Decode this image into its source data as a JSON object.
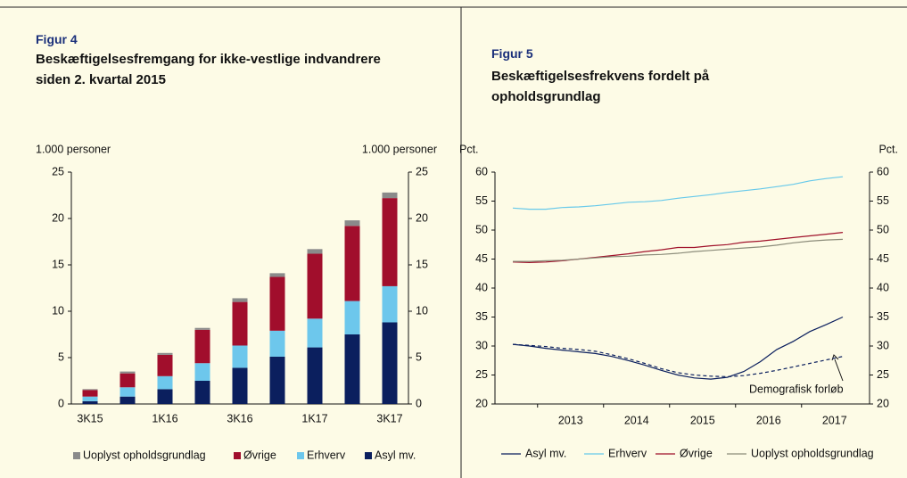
{
  "chart_data": [
    {
      "type": "bar",
      "stacked": true,
      "figure_label": "Figur 4",
      "title": "Beskæftigelsesfremgang for ikke-vestlige indvandrere siden 2. kvartal 2015",
      "ylabel": "1.000 personer",
      "y2label": "1.000 personer",
      "categories": [
        "3K15",
        null,
        "1K16",
        null,
        "3K16",
        null,
        "1K17",
        null,
        "3K17"
      ],
      "series": [
        {
          "name": "Asyl mv.",
          "color": "#0b1f5e",
          "values": [
            0.3,
            0.8,
            1.6,
            2.5,
            3.9,
            5.1,
            6.1,
            7.5,
            8.8
          ]
        },
        {
          "name": "Erhverv",
          "color": "#6dc7ec",
          "values": [
            0.5,
            1.0,
            1.4,
            1.9,
            2.4,
            2.8,
            3.1,
            3.6,
            3.9
          ]
        },
        {
          "name": "Øvrige",
          "color": "#a10e2c",
          "values": [
            0.7,
            1.5,
            2.3,
            3.6,
            4.7,
            5.8,
            7.0,
            8.1,
            9.5
          ]
        },
        {
          "name": "Uoplyst opholdsgrundlag",
          "color": "#8a8a8a",
          "values": [
            0.1,
            0.2,
            0.2,
            0.2,
            0.4,
            0.4,
            0.5,
            0.6,
            0.6
          ]
        }
      ],
      "ylim": [
        0,
        25
      ],
      "yticks": [
        0,
        5,
        10,
        15,
        20,
        25
      ],
      "y2lim": [
        0,
        25
      ],
      "y2ticks": [
        0,
        5,
        10,
        15,
        20,
        25
      ],
      "grid": false
    },
    {
      "type": "line",
      "figure_label": "Figur 5",
      "title": "Beskæftigelsesfrekvens fordelt på opholdsgrundlag",
      "ylabel": "Pct.",
      "y2label": "Pct.",
      "categories": [
        null,
        null,
        null,
        "2013",
        null,
        null,
        null,
        "2014",
        null,
        null,
        null,
        "2015",
        null,
        null,
        null,
        "2016",
        null,
        null,
        null,
        "2017",
        null
      ],
      "series": [
        {
          "name": "Asyl mv.",
          "color": "#0b1f5e",
          "values": [
            30.3,
            30.0,
            29.6,
            29.3,
            29.0,
            28.7,
            28.2,
            27.5,
            26.7,
            25.8,
            25.0,
            24.5,
            24.3,
            24.6,
            25.6,
            27.3,
            29.4,
            30.8,
            32.5,
            33.7,
            35.0
          ]
        },
        {
          "name": "Erhverv",
          "color": "#67c9ea",
          "values": [
            53.8,
            53.6,
            53.6,
            53.9,
            54.0,
            54.2,
            54.5,
            54.8,
            54.9,
            55.1,
            55.5,
            55.8,
            56.1,
            56.5,
            56.8,
            57.1,
            57.5,
            57.9,
            58.5,
            58.9,
            59.2
          ]
        },
        {
          "name": "Øvrige",
          "color": "#a0112a",
          "values": [
            44.5,
            44.4,
            44.5,
            44.7,
            45.0,
            45.3,
            45.6,
            45.9,
            46.3,
            46.6,
            47.0,
            47.0,
            47.3,
            47.5,
            47.9,
            48.1,
            48.4,
            48.7,
            49.0,
            49.3,
            49.6
          ]
        },
        {
          "name": "Uoplyst opholdsgrundlag",
          "color": "#8c8c7a",
          "values": [
            44.6,
            44.6,
            44.7,
            44.8,
            45.0,
            45.2,
            45.4,
            45.5,
            45.7,
            45.8,
            46.0,
            46.3,
            46.5,
            46.7,
            46.9,
            47.1,
            47.4,
            47.8,
            48.1,
            48.3,
            48.4
          ]
        },
        {
          "color": "#0b1f5e",
          "dashed": true,
          "values": [
            30.3,
            30.1,
            29.9,
            29.6,
            29.4,
            29.1,
            28.5,
            27.8,
            27.0,
            26.1,
            25.4,
            25.0,
            24.8,
            24.7,
            24.9,
            25.3,
            25.8,
            26.4,
            27.0,
            27.6,
            28.2
          ]
        }
      ],
      "annotation": "Demografisk forløb",
      "ylim": [
        20,
        60
      ],
      "yticks": [
        20,
        25,
        30,
        35,
        40,
        45,
        50,
        55,
        60
      ],
      "y2lim": [
        20,
        60
      ],
      "y2ticks": [
        20,
        25,
        30,
        35,
        40,
        45,
        50,
        55,
        60
      ],
      "grid": false
    }
  ]
}
